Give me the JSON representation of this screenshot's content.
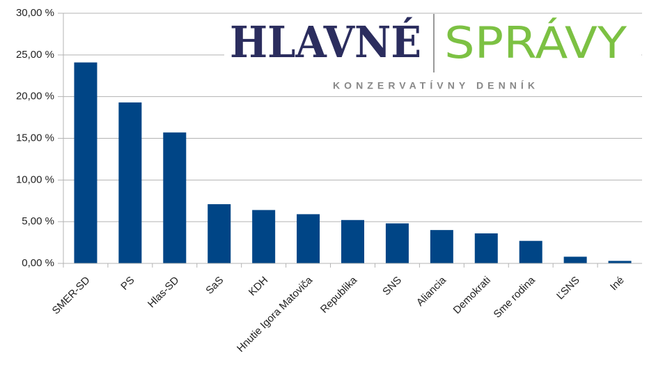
{
  "chart_data": {
    "type": "bar",
    "categories": [
      "SMER-SD",
      "PS",
      "Hlas-SD",
      "SaS",
      "KDH",
      "Hnutie Igora Matoviča",
      "Republika",
      "SNS",
      "Aliancia",
      "Demokrati",
      "Sme rodina",
      "ĽSNS",
      "Iné"
    ],
    "values": [
      24.1,
      19.3,
      15.7,
      7.1,
      6.4,
      5.9,
      5.2,
      4.8,
      4.0,
      3.6,
      2.7,
      0.8,
      0.3
    ],
    "color": "#004586",
    "ylim": [
      0,
      30
    ],
    "yticks": [
      {
        "value": 0,
        "label": "0,00 %"
      },
      {
        "value": 5,
        "label": "5,00 %"
      },
      {
        "value": 10,
        "label": "10,00 %"
      },
      {
        "value": 15,
        "label": "15,00 %"
      },
      {
        "value": 20,
        "label": "20,00 %"
      },
      {
        "value": 25,
        "label": "25,00 %"
      },
      {
        "value": 30,
        "label": "30,00 %"
      }
    ],
    "grid": true,
    "logo": {
      "left": "HLAVNÉ",
      "right": "SPRÁVY",
      "tagline": "KONZERVATÍVNY DENNÍK"
    }
  }
}
